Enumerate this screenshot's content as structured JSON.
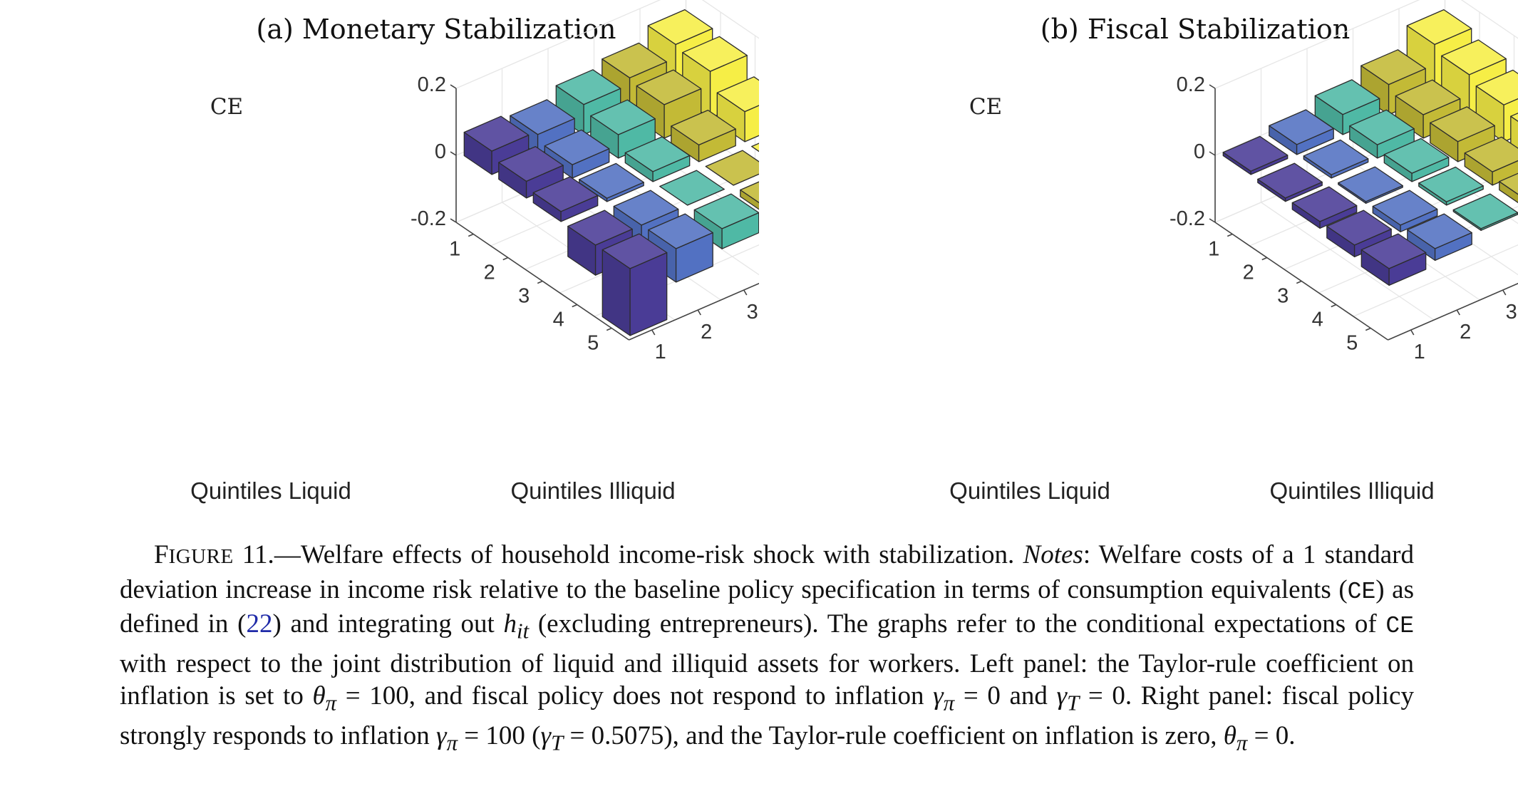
{
  "figure": {
    "panels": [
      {
        "title": "(a) Monetary Stabilization"
      },
      {
        "title": "(b) Fiscal Stabilization"
      }
    ]
  },
  "colors": {
    "by_illiquid_quintile": [
      "#4a3c96",
      "#5271c2",
      "#4fb9a5",
      "#c3ba36",
      "#f6ee46"
    ],
    "edge": "#2c2c2c",
    "grid": "#e6e6e6"
  },
  "chart_data": [
    {
      "type": "bar3d",
      "title": "(a) Monetary Stabilization",
      "zlabel": "CE",
      "xlabel": "Quintiles Liquid",
      "ylabel": "Quintiles Illiquid",
      "x": [
        1,
        2,
        3,
        4,
        5
      ],
      "y": [
        1,
        2,
        3,
        4,
        5
      ],
      "zlim": [
        -0.2,
        0.2
      ],
      "zticks": [
        -0.2,
        0,
        0.2
      ],
      "ztick_labels": [
        "-0.2",
        "0",
        "0.2"
      ],
      "xtick_labels": [
        "1",
        "2",
        "3",
        "4",
        "5"
      ],
      "ytick_labels": [
        "1",
        "2",
        "3",
        "4",
        "5"
      ],
      "grid": true,
      "values": [
        [
          0.07,
          0.06,
          0.09,
          0.11,
          0.15
        ],
        [
          0.05,
          0.04,
          0.07,
          0.1,
          0.14
        ],
        [
          0.03,
          0.01,
          0.03,
          0.05,
          0.09
        ],
        [
          -0.09,
          -0.085,
          0.0,
          0.0,
          0.0
        ],
        [
          -0.2,
          -0.1,
          -0.06,
          -0.02,
          0.02
        ]
      ]
    },
    {
      "type": "bar3d",
      "title": "(b) Fiscal Stabilization",
      "zlabel": "CE",
      "xlabel": "Quintiles Liquid",
      "ylabel": "Quintiles Illiquid",
      "x": [
        1,
        2,
        3,
        4,
        5
      ],
      "y": [
        1,
        2,
        3,
        4,
        5
      ],
      "zlim": [
        -0.2,
        0.2
      ],
      "zticks": [
        -0.2,
        0,
        0.2
      ],
      "ztick_labels": [
        "-0.2",
        "0",
        "0.2"
      ],
      "xtick_labels": [
        "1",
        "2",
        "3",
        "4",
        "5"
      ],
      "ytick_labels": [
        "1",
        "2",
        "3",
        "4",
        "5"
      ],
      "grid": true,
      "values": [
        [
          0.01,
          0.03,
          0.06,
          0.09,
          0.15
        ],
        [
          -0.01,
          0.01,
          0.04,
          0.07,
          0.13
        ],
        [
          -0.02,
          -0.005,
          0.025,
          0.06,
          0.11
        ],
        [
          -0.035,
          -0.02,
          0.01,
          0.04,
          0.09
        ],
        [
          -0.05,
          -0.035,
          -0.005,
          0.025,
          0.07
        ]
      ]
    }
  ],
  "caption": {
    "fig_word_big": "F",
    "fig_word_small": "IGURE",
    "fig_number": "11.",
    "dash": "—",
    "title": "Welfare effects of household income-risk shock with stabilization.",
    "notes_label": "Notes",
    "text_1": ": Welfare costs of a 1 standard deviation increase in income risk relative to the baseline policy specification in terms of consumption equivalents (",
    "ce_abbrev": "CE",
    "text_2": ") as defined in (",
    "eq_ref": "22",
    "text_3": ") and integrating out ",
    "h_var": "h",
    "h_sub": "it",
    "text_4": " (excluding entrepreneurs). The graphs refer to the conditional expectations of ",
    "ce_abbrev_2": "CE",
    "text_5": " with respect to the joint distribution of liquid and illiquid assets for workers. Left panel: the Taylor-rule coefficient on inflation is set to ",
    "theta_sym": "θ",
    "pi_sub": "π",
    "eq_100": " = 100",
    "text_6": ", and fiscal policy does not respond to inflation ",
    "gamma_sym": "γ",
    "eq_0": " = 0",
    "text_7": " and ",
    "T_sub": "T",
    "text_8": ". Right panel: fiscal policy strongly responds to inflation ",
    "text_9": " (",
    "eq_05075": " = 0.5075",
    "text_10": "), and the Taylor-rule coefficient on inflation is zero, ",
    "text_11": "."
  }
}
